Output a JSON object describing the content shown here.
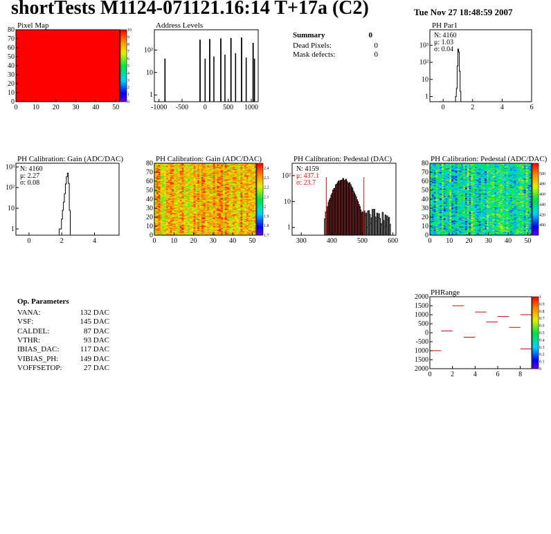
{
  "header": {
    "title": "shortTests M1124-071121.16:14 T+17a (C2)",
    "date": "Tue Nov 27 18:48:59 2007"
  },
  "summary": {
    "title": "Summary",
    "value": "0",
    "rows": [
      {
        "label": "Dead Pixels:",
        "value": "0"
      },
      {
        "label": "Mask defects:",
        "value": "0"
      }
    ]
  },
  "op_params": {
    "title": "Op. Parameters",
    "rows": [
      {
        "name": "VANA:",
        "value": "132 DAC"
      },
      {
        "name": "VSF:",
        "value": "145 DAC"
      },
      {
        "name": "CALDEL:",
        "value": "87 DAC"
      },
      {
        "name": "VTHR:",
        "value": "93 DAC"
      },
      {
        "name": "IBIAS_DAC:",
        "value": "117 DAC"
      },
      {
        "name": "VIBIAS_PH:",
        "value": "149 DAC"
      },
      {
        "name": "VOFFSETOP:",
        "value": "27 DAC"
      }
    ]
  },
  "colors": {
    "hist_line": "#000000",
    "fit_red": "#ff0000",
    "fill_red": "#ff0000",
    "map_red": "#ff0000"
  },
  "chart_data": [
    {
      "id": "pixel_map",
      "type": "heatmap",
      "title": "Pixel Map",
      "xlim": [
        0,
        52
      ],
      "ylim": [
        0,
        80
      ],
      "zlim": [
        0,
        10
      ],
      "x_ticks": [
        0,
        10,
        20,
        30,
        40,
        50
      ],
      "y_ticks": [
        0,
        10,
        20,
        30,
        40,
        50,
        60,
        70,
        80
      ],
      "z_ticks": [
        0,
        1,
        2,
        3,
        4,
        5,
        6,
        7,
        8,
        9,
        10
      ],
      "uniform_value": 10
    },
    {
      "id": "address_levels",
      "type": "bar",
      "title": "Address Levels",
      "log_y": true,
      "xlim": [
        -1100,
        1150
      ],
      "ylim": [
        0.5,
        800
      ],
      "x_ticks": [
        -1000,
        -500,
        0,
        500,
        1000
      ],
      "y_ticks": [
        {
          "value": 1,
          "label": "1"
        },
        {
          "value": 10,
          "label": "10"
        },
        {
          "value": 100,
          "label": "10²"
        }
      ],
      "peaks": [
        {
          "x": -870,
          "y": 40,
          "w": 10
        },
        {
          "x": -110,
          "y": 280,
          "w": 12
        },
        {
          "x": 0,
          "y": 40,
          "w": 8
        },
        {
          "x": 100,
          "y": 300,
          "w": 12
        },
        {
          "x": 190,
          "y": 50,
          "w": 8
        },
        {
          "x": 340,
          "y": 320,
          "w": 12
        },
        {
          "x": 430,
          "y": 60,
          "w": 8
        },
        {
          "x": 560,
          "y": 330,
          "w": 12
        },
        {
          "x": 660,
          "y": 70,
          "w": 8
        },
        {
          "x": 790,
          "y": 350,
          "w": 12
        },
        {
          "x": 890,
          "y": 45,
          "w": 8
        },
        {
          "x": 1040,
          "y": 200,
          "w": 12
        },
        {
          "x": 1070,
          "y": 40,
          "w": 8
        }
      ]
    },
    {
      "id": "ph_par1",
      "type": "bar",
      "title": "PH Par1",
      "log_y": true,
      "xlim": [
        -0.9,
        6
      ],
      "ylim": [
        0.5,
        8000
      ],
      "x_ticks": [
        0,
        2,
        4,
        6
      ],
      "y_ticks": [
        {
          "value": 1,
          "label": "1"
        },
        {
          "value": 10,
          "label": "10"
        },
        {
          "value": 100,
          "label": "10²"
        },
        {
          "value": 1000,
          "label": "10³"
        }
      ],
      "stats": {
        "n": "N: 4160",
        "mean": "μ: 1.03",
        "sigma": "σ: 0.04"
      },
      "bins": [
        [
          0.84,
          1
        ],
        [
          0.9,
          3
        ],
        [
          0.95,
          60
        ],
        [
          1.0,
          600
        ],
        [
          1.05,
          400
        ],
        [
          1.1,
          30
        ],
        [
          1.15,
          2
        ]
      ],
      "bin_width": 0.05
    },
    {
      "id": "gain_hist",
      "type": "bar",
      "title": "PH Calibration: Gain (ADC/DAC)",
      "log_y": true,
      "xlim": [
        -0.8,
        5.5
      ],
      "ylim": [
        0.5,
        1500
      ],
      "x_ticks": [
        0,
        2,
        4
      ],
      "y_ticks": [
        {
          "value": 1,
          "label": "1"
        },
        {
          "value": 10,
          "label": "10"
        },
        {
          "value": 100,
          "label": "10²"
        },
        {
          "value": 1000,
          "label": "10³"
        }
      ],
      "stats": {
        "n": "N: 4160",
        "mean": "μ: 2.27",
        "sigma": "σ: 0.08"
      },
      "bins": [
        [
          1.84,
          1
        ],
        [
          1.92,
          1
        ],
        [
          1.98,
          3
        ],
        [
          2.04,
          8
        ],
        [
          2.1,
          20
        ],
        [
          2.16,
          50
        ],
        [
          2.22,
          150
        ],
        [
          2.28,
          330
        ],
        [
          2.34,
          500
        ],
        [
          2.4,
          160
        ],
        [
          2.46,
          8
        ]
      ],
      "bin_width": 0.06
    },
    {
      "id": "gain_map",
      "type": "heatmap",
      "title": "PH Calibration: Gain (ADC/DAC)",
      "xlim": [
        0,
        52
      ],
      "ylim": [
        0,
        80
      ],
      "zlim": [
        1.7,
        2.45
      ],
      "x_ticks": [
        0,
        10,
        20,
        30,
        40,
        50
      ],
      "y_ticks": [
        0,
        10,
        20,
        30,
        40,
        50,
        60,
        70,
        80
      ],
      "z_ticks": [
        1.7,
        1.8,
        1.9,
        2,
        2.1,
        2.2,
        2.3,
        2.4
      ],
      "typical_value": 2.27
    },
    {
      "id": "pedestal_hist",
      "type": "bar",
      "title": "PH Calibration: Pedestal (DAC)",
      "log_y": true,
      "xlim": [
        270,
        610
      ],
      "ylim": [
        0.5,
        300
      ],
      "x_ticks": [
        300,
        400,
        500,
        600
      ],
      "y_ticks": [
        {
          "value": 1,
          "label": "1"
        },
        {
          "value": 10,
          "label": "10"
        },
        {
          "value": 100,
          "label": "10²"
        }
      ],
      "stats": {
        "n": "N: 4159",
        "mean": "μ: 437.1",
        "sigma": "σ: 23.7"
      },
      "fit_range": [
        382,
        505
      ],
      "bin_width": 3,
      "mean": 437,
      "sigma": 23.7,
      "peak": 68
    },
    {
      "id": "pedestal_map",
      "type": "heatmap",
      "title": "PH Calibration: Pedestal (ADC/DAC)",
      "xlim": [
        0,
        52
      ],
      "ylim": [
        0,
        80
      ],
      "zlim": [
        380,
        520
      ],
      "x_ticks": [
        0,
        10,
        20,
        30,
        40,
        50
      ],
      "y_ticks": [
        0,
        10,
        20,
        30,
        40,
        50,
        60,
        70,
        80
      ],
      "z_ticks": [
        400,
        420,
        440,
        460,
        480,
        500
      ],
      "typical_value": 437
    },
    {
      "id": "ph_range",
      "type": "scatter",
      "title": "PHRange",
      "xlim": [
        0,
        9
      ],
      "ylim": [
        -2000,
        2000
      ],
      "zlim": [
        0,
        1
      ],
      "x_ticks": [
        0,
        2,
        4,
        6,
        8
      ],
      "y_ticks": [
        {
          "value": 2000,
          "label": "2000"
        },
        {
          "value": 1500,
          "label": "1500"
        },
        {
          "value": 1000,
          "label": "1000"
        },
        {
          "value": 500,
          "label": "500"
        },
        {
          "value": 0,
          "label": "0"
        },
        {
          "value": -500,
          "label": "-500"
        },
        {
          "value": -1000,
          "label": "1000"
        },
        {
          "value": -1500,
          "label": "1500"
        },
        {
          "value": -2000,
          "label": "2000"
        }
      ],
      "z_ticks": [
        0,
        0.1,
        0.2,
        0.3,
        0.4,
        0.5,
        0.6,
        0.7,
        0.8,
        0.9,
        1
      ],
      "segments": [
        [
          0,
          -1000
        ],
        [
          1,
          100
        ],
        [
          2,
          1500
        ],
        [
          3,
          -250
        ],
        [
          4,
          1150
        ],
        [
          5,
          600
        ],
        [
          6,
          900
        ],
        [
          7,
          300
        ],
        [
          8,
          1000
        ],
        [
          8,
          -900
        ]
      ]
    }
  ]
}
